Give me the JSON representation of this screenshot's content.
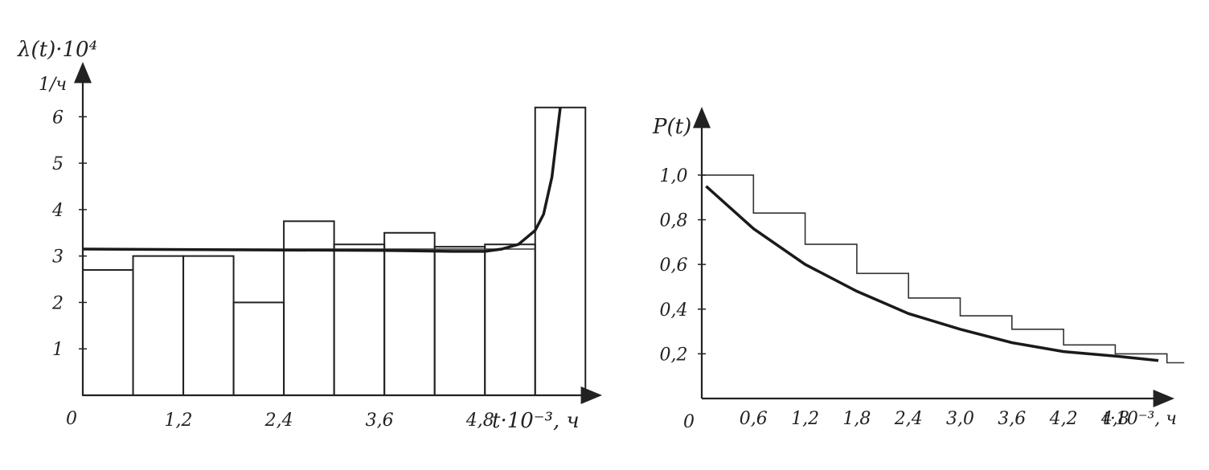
{
  "chart_data": [
    {
      "type": "bar",
      "ylabel": "λ(t)·10⁴",
      "yunit": "1/ч",
      "xlabel": "t·10⁻³, ч",
      "origin_label": "0",
      "xlim": [
        0,
        5.7
      ],
      "ylim": [
        0,
        6.3
      ],
      "x_ticks": [
        "1,2",
        "2,4",
        "3,6",
        "4,8"
      ],
      "x_tick_values": [
        1.2,
        2.4,
        3.6,
        4.8
      ],
      "y_ticks": [
        "1",
        "2",
        "3",
        "4",
        "5",
        "6"
      ],
      "y_tick_values": [
        1,
        2,
        3,
        4,
        5,
        6
      ],
      "bins": [
        {
          "x0": 0.0,
          "x1": 0.6,
          "value": 2.7
        },
        {
          "x0": 0.6,
          "x1": 1.2,
          "value": 3.0
        },
        {
          "x0": 1.2,
          "x1": 1.8,
          "value": 3.0
        },
        {
          "x0": 1.8,
          "x1": 2.4,
          "value": 2.0
        },
        {
          "x0": 2.4,
          "x1": 3.0,
          "value": 3.75
        },
        {
          "x0": 3.0,
          "x1": 3.6,
          "value": 3.25
        },
        {
          "x0": 3.6,
          "x1": 4.2,
          "value": 3.5
        },
        {
          "x0": 4.2,
          "x1": 4.8,
          "value": 3.2
        },
        {
          "x0": 4.8,
          "x1": 5.4,
          "value": 3.25
        },
        {
          "x0": 5.4,
          "x1": 6.0,
          "value": 6.2
        }
      ],
      "mean_line": 3.15,
      "fit_curve": {
        "x": [
          0,
          1.2,
          2.4,
          3.6,
          4.4,
          4.8,
          5.0,
          5.2,
          5.4,
          5.5,
          5.6,
          5.7
        ],
        "y": [
          3.15,
          3.14,
          3.13,
          3.12,
          3.1,
          3.1,
          3.15,
          3.25,
          3.55,
          3.9,
          4.7,
          6.2
        ]
      }
    },
    {
      "type": "line",
      "ylabel": "P(t)",
      "xlabel": "t·10⁻³, ч",
      "origin_label": "0",
      "xlim": [
        0,
        5.3
      ],
      "ylim": [
        0,
        1.05
      ],
      "x_ticks": [
        "0,6",
        "1,2",
        "1,8",
        "2,4",
        "3,0",
        "3,6",
        "4,2",
        "4,8"
      ],
      "x_tick_values": [
        0.6,
        1.2,
        1.8,
        2.4,
        3.0,
        3.6,
        4.2,
        4.8
      ],
      "y_ticks": [
        "0,2",
        "0,4",
        "0,6",
        "0,8",
        "1,0"
      ],
      "y_tick_values": [
        0.2,
        0.4,
        0.6,
        0.8,
        1.0
      ],
      "step_series": {
        "x": [
          0,
          0.6,
          1.2,
          1.8,
          2.4,
          3.0,
          3.6,
          4.2,
          4.8,
          5.4
        ],
        "y": [
          1.0,
          0.83,
          0.69,
          0.56,
          0.45,
          0.37,
          0.31,
          0.24,
          0.2,
          0.16
        ]
      },
      "fit_curve": {
        "x": [
          0.05,
          0.6,
          1.2,
          1.8,
          2.4,
          3.0,
          3.6,
          4.2,
          4.8,
          5.3
        ],
        "y": [
          0.95,
          0.76,
          0.6,
          0.48,
          0.38,
          0.31,
          0.25,
          0.21,
          0.19,
          0.17
        ]
      }
    }
  ]
}
